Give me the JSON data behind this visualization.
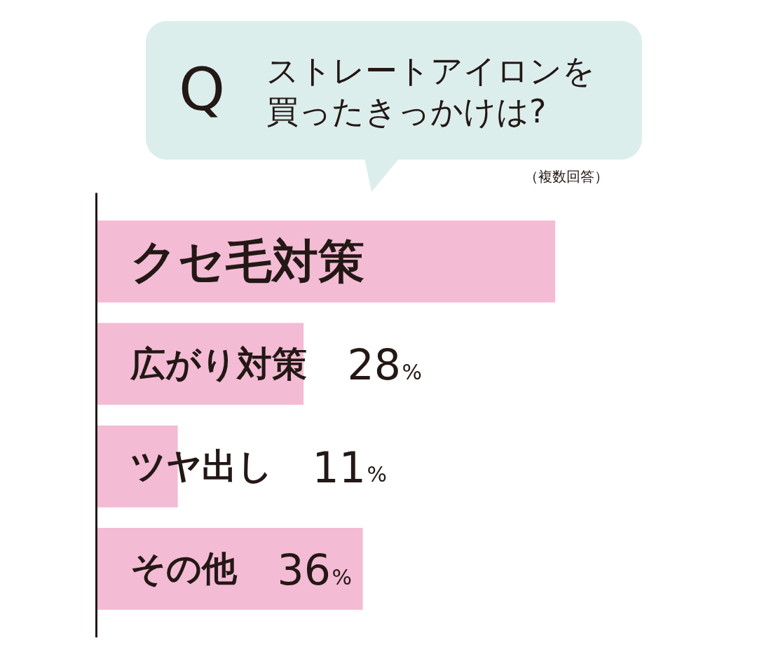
{
  "chart_data": {
    "type": "bar",
    "orientation": "horizontal",
    "title": "ストレートアイロンを買ったきっかけは?",
    "subtitle": "（複数回答）",
    "annotations": [
      "Q"
    ],
    "categories": [
      "クセ毛対策",
      "広がり対策",
      "ツヤ出し",
      "その他"
    ],
    "values": [
      62,
      28,
      11,
      36
    ],
    "value_labels": [
      null,
      "28%",
      "11%",
      "36%"
    ],
    "color": "#f4bbd4",
    "tick_labels": false,
    "grid": false
  }
}
